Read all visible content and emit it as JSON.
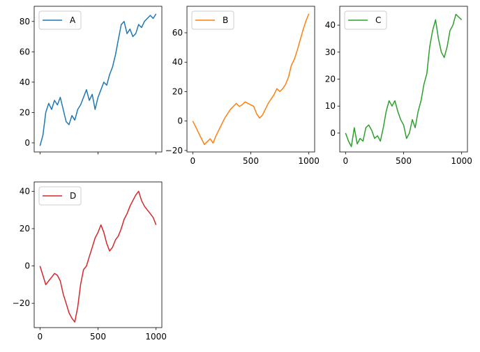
{
  "chart_data": [
    {
      "type": "line",
      "series": [
        {
          "name": "A",
          "color": "#1f77b4",
          "x": [
            0,
            25,
            50,
            75,
            100,
            125,
            150,
            175,
            200,
            225,
            250,
            275,
            300,
            325,
            350,
            375,
            400,
            425,
            450,
            475,
            500,
            525,
            550,
            575,
            600,
            625,
            650,
            675,
            700,
            725,
            750,
            775,
            800,
            825,
            850,
            875,
            900,
            925,
            950,
            975,
            1000
          ],
          "y": [
            -2,
            5,
            20,
            26,
            22,
            28,
            25,
            30,
            22,
            14,
            12,
            18,
            15,
            22,
            25,
            30,
            35,
            28,
            32,
            22,
            30,
            35,
            40,
            38,
            45,
            50,
            58,
            68,
            78,
            80,
            72,
            75,
            70,
            72,
            78,
            76,
            80,
            82,
            84,
            82,
            85
          ]
        }
      ],
      "xlim": [
        -50,
        1050
      ],
      "ylim": [
        -6,
        90
      ],
      "xticks": [
        0,
        500,
        1000
      ],
      "yticks": [
        0,
        20,
        40,
        60,
        80
      ],
      "xticklabels_visible": false,
      "legend": "upper left"
    },
    {
      "type": "line",
      "series": [
        {
          "name": "B",
          "color": "#ff7f0e",
          "x": [
            0,
            25,
            50,
            75,
            100,
            125,
            150,
            175,
            200,
            225,
            250,
            275,
            300,
            325,
            350,
            375,
            400,
            425,
            450,
            475,
            500,
            525,
            550,
            575,
            600,
            625,
            650,
            675,
            700,
            725,
            750,
            775,
            800,
            825,
            850,
            875,
            900,
            925,
            950,
            975,
            1000
          ],
          "y": [
            0,
            -4,
            -8,
            -12,
            -16,
            -14,
            -12,
            -15,
            -10,
            -6,
            -2,
            2,
            5,
            8,
            10,
            12,
            10,
            11,
            13,
            12,
            11,
            10,
            5,
            2,
            4,
            8,
            12,
            15,
            18,
            22,
            20,
            22,
            25,
            30,
            38,
            42,
            48,
            55,
            62,
            68,
            73
          ]
        }
      ],
      "xlim": [
        -50,
        1050
      ],
      "ylim": [
        -21,
        78
      ],
      "xticks": [
        0,
        500,
        1000
      ],
      "yticks": [
        -20,
        0,
        20,
        40,
        60
      ],
      "legend": "upper left"
    },
    {
      "type": "line",
      "series": [
        {
          "name": "C",
          "color": "#2ca02c",
          "x": [
            0,
            25,
            50,
            75,
            100,
            125,
            150,
            175,
            200,
            225,
            250,
            275,
            300,
            325,
            350,
            375,
            400,
            425,
            450,
            475,
            500,
            525,
            550,
            575,
            600,
            625,
            650,
            675,
            700,
            725,
            750,
            775,
            800,
            825,
            850,
            875,
            900,
            925,
            950,
            975,
            1000
          ],
          "y": [
            0,
            -3,
            -5,
            2,
            -4,
            -2,
            -3,
            2,
            3,
            1,
            -2,
            -1,
            -3,
            2,
            8,
            12,
            10,
            12,
            8,
            5,
            3,
            -2,
            0,
            5,
            2,
            8,
            12,
            18,
            22,
            32,
            38,
            42,
            35,
            30,
            28,
            32,
            38,
            40,
            44,
            43,
            42
          ]
        }
      ],
      "xlim": [
        -50,
        1050
      ],
      "ylim": [
        -7,
        47
      ],
      "xticks": [
        0,
        500,
        1000
      ],
      "yticks": [
        0,
        10,
        20,
        30,
        40
      ],
      "legend": "upper left"
    },
    {
      "type": "line",
      "series": [
        {
          "name": "D",
          "color": "#d62728",
          "x": [
            0,
            25,
            50,
            75,
            100,
            125,
            150,
            175,
            200,
            225,
            250,
            275,
            300,
            325,
            350,
            375,
            400,
            425,
            450,
            475,
            500,
            525,
            550,
            575,
            600,
            625,
            650,
            675,
            700,
            725,
            750,
            775,
            800,
            825,
            850,
            875,
            900,
            925,
            950,
            975,
            1000
          ],
          "y": [
            0,
            -5,
            -10,
            -8,
            -6,
            -4,
            -5,
            -8,
            -15,
            -20,
            -25,
            -28,
            -30,
            -22,
            -10,
            -2,
            0,
            5,
            10,
            15,
            18,
            22,
            18,
            12,
            8,
            10,
            14,
            16,
            20,
            25,
            28,
            32,
            35,
            38,
            40,
            35,
            32,
            30,
            28,
            26,
            22
          ]
        }
      ],
      "xlim": [
        -50,
        1050
      ],
      "ylim": [
        -33,
        45
      ],
      "xticks": [
        0,
        500,
        1000
      ],
      "yticks": [
        -20,
        0,
        20,
        40
      ],
      "legend": "upper left"
    }
  ]
}
